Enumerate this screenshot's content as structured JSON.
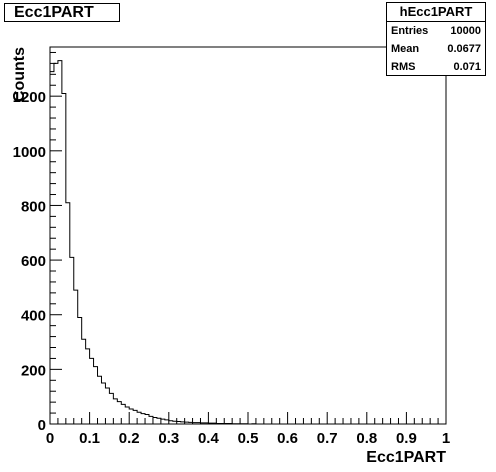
{
  "title": "Ecc1PART",
  "stats": {
    "name": "hEcc1PART",
    "rows": [
      {
        "label": "Entries",
        "value": "10000"
      },
      {
        "label": "Mean",
        "value": "0.0677"
      },
      {
        "label": "RMS",
        "value": "0.071"
      }
    ]
  },
  "chart_data": {
    "type": "bar",
    "style": "step-histogram",
    "xlabel": "Ecc1PART",
    "ylabel": "Counts",
    "xlim": [
      0,
      1
    ],
    "ylim": [
      0,
      1380
    ],
    "xticks": [
      "0",
      "0.1",
      "0.2",
      "0.3",
      "0.4",
      "0.5",
      "0.6",
      "0.7",
      "0.8",
      "0.9",
      "1"
    ],
    "yticks": [
      "0",
      "200",
      "400",
      "600",
      "800",
      "1000",
      "1200"
    ],
    "bin_width": 0.01,
    "values": [
      1290,
      1320,
      1330,
      1210,
      810,
      610,
      490,
      390,
      310,
      275,
      240,
      210,
      175,
      150,
      132,
      112,
      92,
      82,
      72,
      62,
      55,
      50,
      43,
      38,
      35,
      28,
      24,
      21,
      18,
      15,
      12,
      10,
      9,
      8,
      7,
      6,
      5,
      5,
      4,
      4,
      3,
      3,
      2,
      2,
      2,
      2,
      1,
      1,
      1,
      1,
      0,
      1,
      0,
      0,
      0,
      0,
      0,
      0,
      0,
      0,
      0,
      0,
      0,
      0,
      0,
      0,
      0,
      0,
      0,
      0,
      0,
      0,
      0,
      0,
      0,
      0,
      0,
      0,
      0,
      0,
      0,
      0,
      0,
      0,
      0,
      0,
      0,
      0,
      0,
      0,
      0,
      0,
      0,
      0,
      0,
      0,
      0,
      0,
      0,
      0
    ]
  }
}
